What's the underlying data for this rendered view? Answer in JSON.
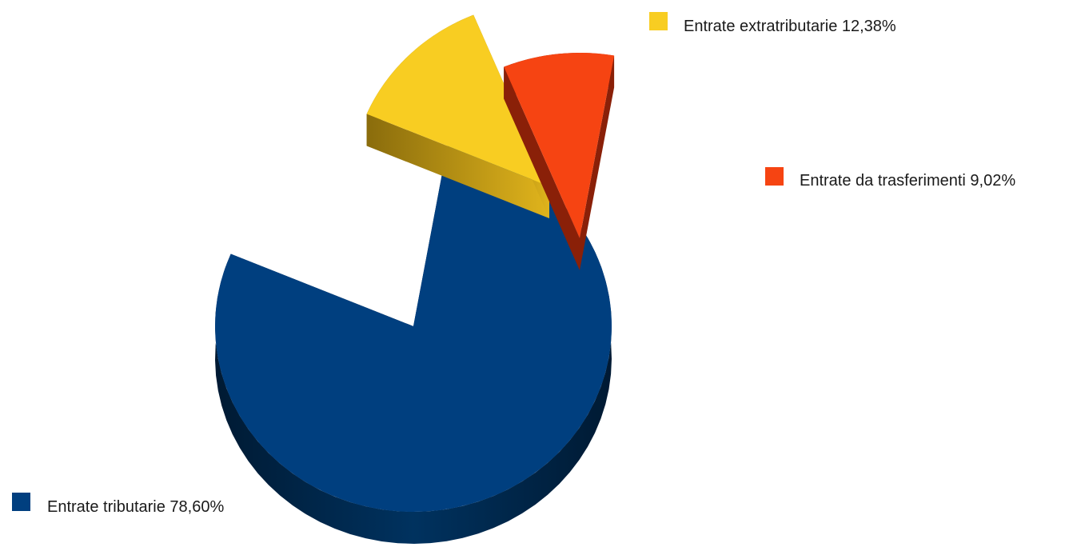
{
  "chart_data": {
    "type": "pie",
    "style": "3d-exploded",
    "title": "",
    "legend_placement": "labels beside slices",
    "series": [
      {
        "values": [
          78.6,
          12.38,
          9.02
        ]
      }
    ],
    "categories": [
      "Entrate tributarie",
      "Entrate extratributarie",
      "Entrate da trasferimenti"
    ],
    "slices": [
      {
        "label": "Entrate tributarie",
        "value": 78.6,
        "display": "Entrate tributarie 78,60%",
        "color": "#003f7f"
      },
      {
        "label": "Entrate extratributarie",
        "value": 12.38,
        "display": "Entrate extratributarie 12,38%",
        "color": "#f8cd22"
      },
      {
        "label": "Entrate da trasferimenti",
        "value": 9.02,
        "display": "Entrate da trasferimenti 9,02%",
        "color": "#f64412"
      }
    ]
  }
}
